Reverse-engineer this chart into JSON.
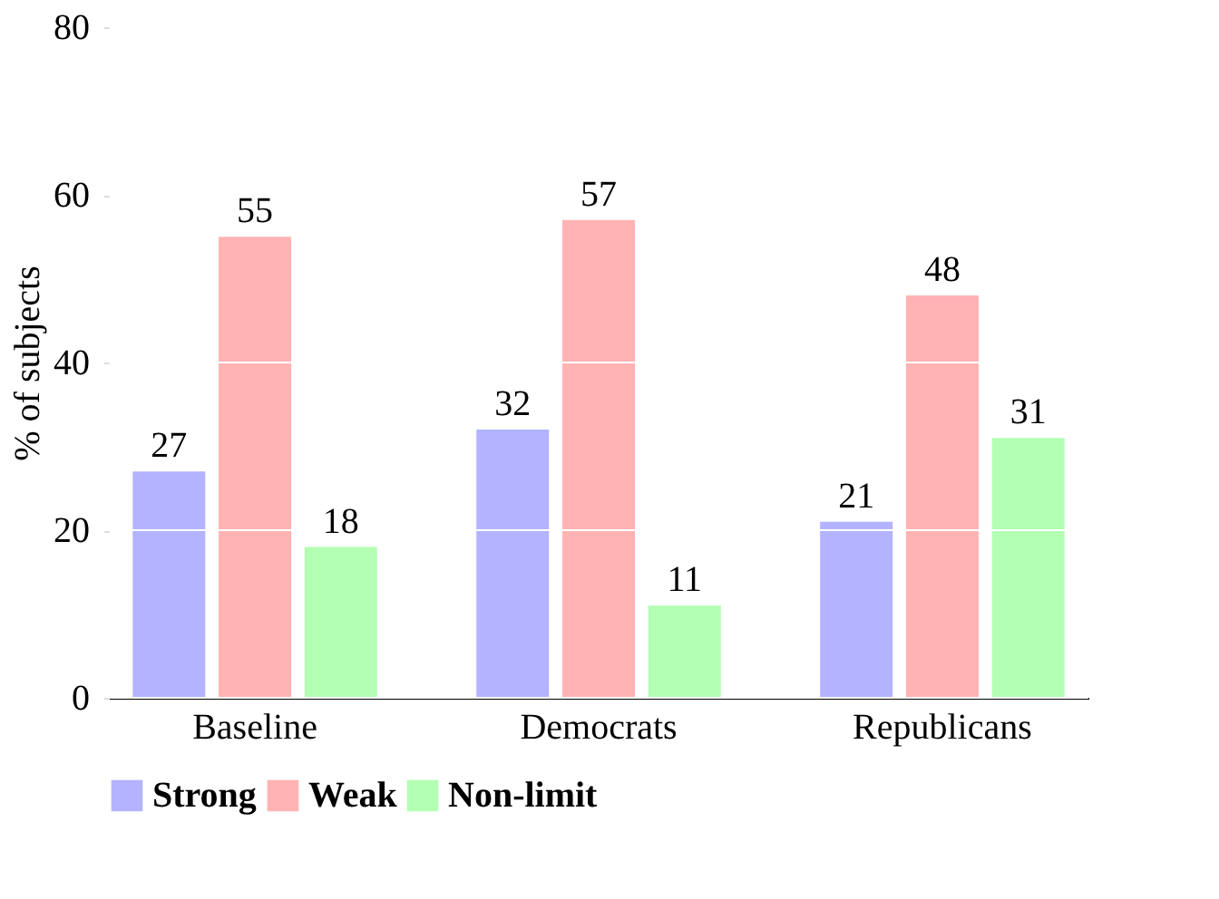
{
  "chart_data": {
    "type": "bar",
    "ylabel": "% of subjects",
    "categories": [
      "Baseline",
      "Democrats",
      "Republicans"
    ],
    "series": [
      {
        "name": "Strong",
        "color": "#b3b3ff",
        "values": [
          27,
          32,
          21
        ]
      },
      {
        "name": "Weak",
        "color": "#ffb3b3",
        "values": [
          55,
          57,
          48
        ]
      },
      {
        "name": "Non-limit",
        "color": "#b3ffb3",
        "values": [
          18,
          11,
          31
        ]
      }
    ],
    "ylim": [
      0,
      80
    ],
    "yticks": [
      0,
      20,
      40,
      60,
      80
    ],
    "grid": "y",
    "legend": "bottom",
    "data_labels": true
  }
}
